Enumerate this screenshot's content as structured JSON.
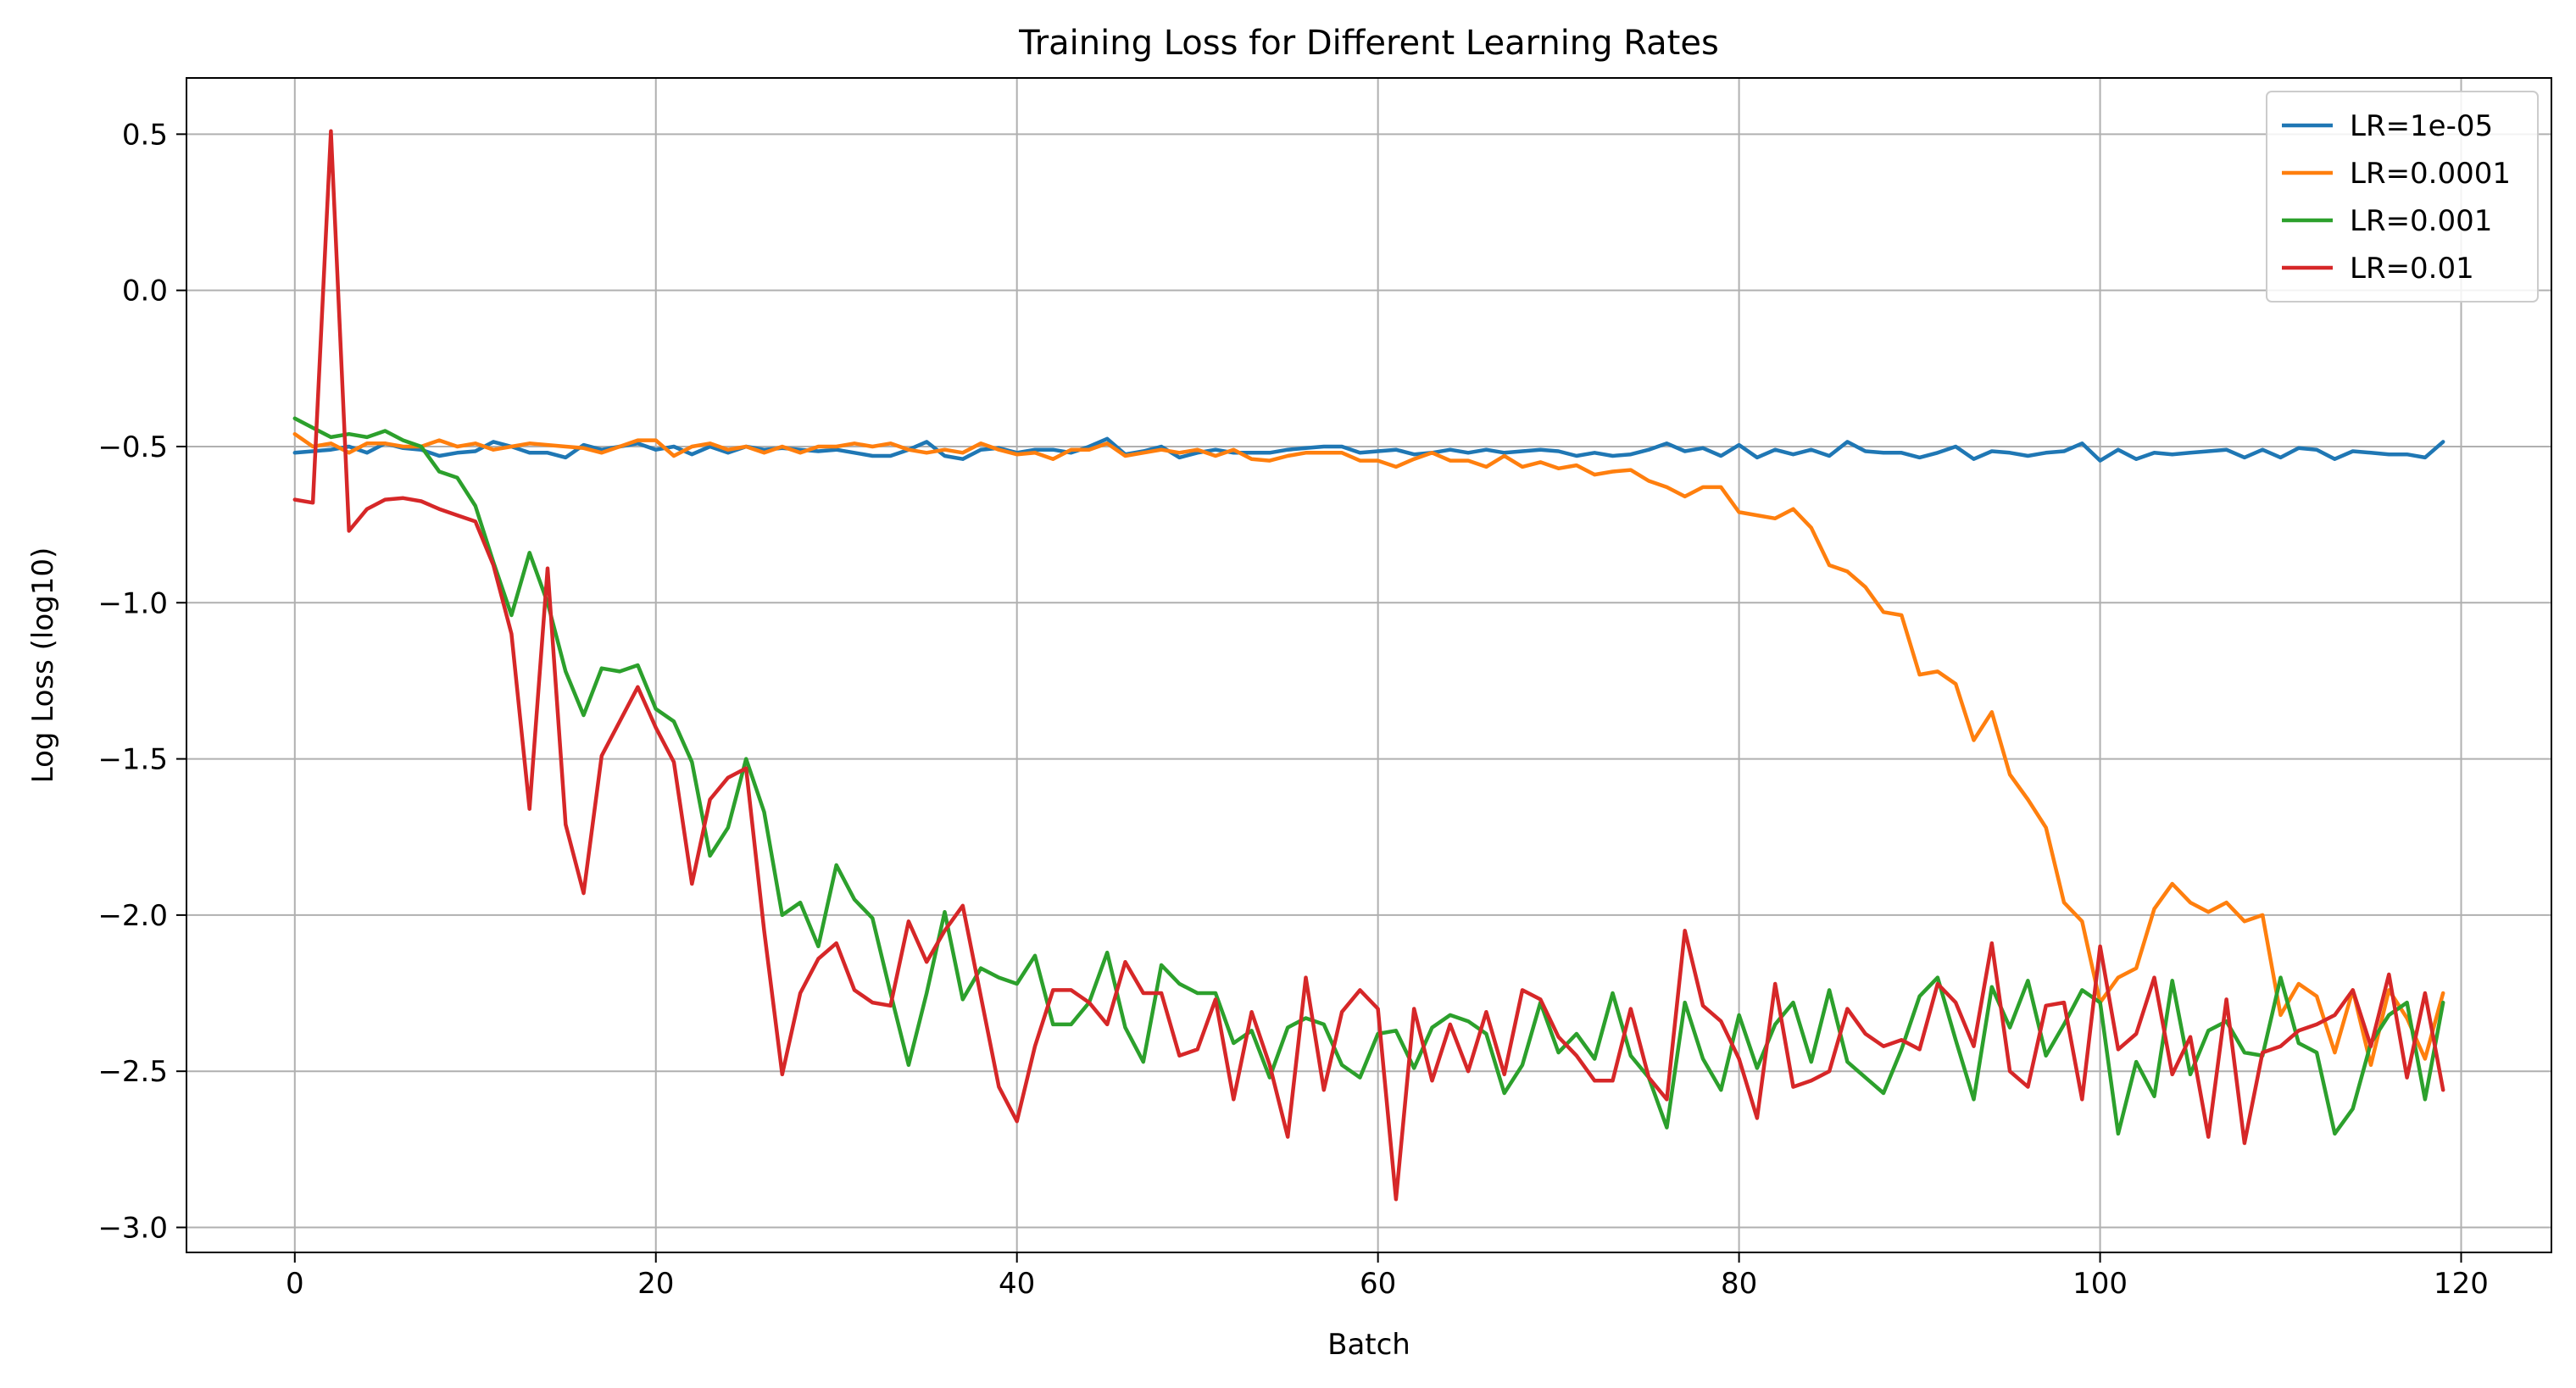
{
  "chart_data": {
    "type": "line",
    "title": "Training Loss for Different Learning Rates",
    "xlabel": "Batch",
    "ylabel": "Log Loss (log10)",
    "xlim": [
      -6,
      125
    ],
    "ylim": [
      -3.08,
      0.68
    ],
    "xticks": [
      0,
      20,
      40,
      60,
      80,
      100,
      120
    ],
    "yticks": [
      0.5,
      0.0,
      -0.5,
      -1.0,
      -1.5,
      -2.0,
      -2.5,
      -3.0
    ],
    "xtick_labels": [
      "0",
      "20",
      "40",
      "60",
      "80",
      "100",
      "120"
    ],
    "ytick_labels": [
      "0.5",
      "0.0",
      "−0.5",
      "−1.0",
      "−1.5",
      "−2.0",
      "−2.5",
      "−3.0"
    ],
    "grid": true,
    "legend_position": "top-right",
    "series": [
      {
        "name": "LR=1e-05",
        "color": "#1f77b4",
        "values": [
          -0.52,
          -0.515,
          -0.51,
          -0.5,
          -0.52,
          -0.49,
          -0.505,
          -0.51,
          -0.53,
          -0.52,
          -0.515,
          -0.485,
          -0.5,
          -0.52,
          -0.52,
          -0.535,
          -0.495,
          -0.51,
          -0.5,
          -0.49,
          -0.51,
          -0.5,
          -0.525,
          -0.5,
          -0.52,
          -0.5,
          -0.51,
          -0.505,
          -0.51,
          -0.515,
          -0.51,
          -0.52,
          -0.53,
          -0.53,
          -0.51,
          -0.485,
          -0.53,
          -0.54,
          -0.51,
          -0.505,
          -0.52,
          -0.51,
          -0.51,
          -0.52,
          -0.5,
          -0.475,
          -0.525,
          -0.515,
          -0.5,
          -0.535,
          -0.52,
          -0.51,
          -0.52,
          -0.52,
          -0.52,
          -0.51,
          -0.505,
          -0.5,
          -0.5,
          -0.52,
          -0.515,
          -0.51,
          -0.525,
          -0.52,
          -0.51,
          -0.52,
          -0.51,
          -0.52,
          -0.515,
          -0.51,
          -0.515,
          -0.53,
          -0.52,
          -0.53,
          -0.525,
          -0.51,
          -0.49,
          -0.515,
          -0.505,
          -0.53,
          -0.495,
          -0.535,
          -0.51,
          -0.525,
          -0.51,
          -0.53,
          -0.485,
          -0.515,
          -0.52,
          -0.52,
          -0.535,
          -0.52,
          -0.5,
          -0.54,
          -0.515,
          -0.52,
          -0.53,
          -0.52,
          -0.515,
          -0.49,
          -0.545,
          -0.51,
          -0.54,
          -0.52,
          -0.525,
          -0.52,
          -0.515,
          -0.51,
          -0.535,
          -0.51,
          -0.535,
          -0.505,
          -0.51,
          -0.54,
          -0.515,
          -0.52,
          -0.525,
          -0.525,
          -0.535,
          -0.485
        ]
      },
      {
        "name": "LR=0.0001",
        "color": "#ff7f0e",
        "values": [
          -0.46,
          -0.5,
          -0.49,
          -0.52,
          -0.49,
          -0.49,
          -0.5,
          -0.5,
          -0.48,
          -0.5,
          -0.49,
          -0.51,
          -0.5,
          -0.49,
          -0.495,
          -0.5,
          -0.505,
          -0.52,
          -0.5,
          -0.48,
          -0.48,
          -0.53,
          -0.5,
          -0.49,
          -0.51,
          -0.5,
          -0.52,
          -0.5,
          -0.52,
          -0.5,
          -0.5,
          -0.49,
          -0.5,
          -0.49,
          -0.51,
          -0.52,
          -0.51,
          -0.52,
          -0.49,
          -0.51,
          -0.525,
          -0.52,
          -0.54,
          -0.51,
          -0.51,
          -0.49,
          -0.53,
          -0.52,
          -0.51,
          -0.52,
          -0.51,
          -0.53,
          -0.51,
          -0.54,
          -0.545,
          -0.53,
          -0.52,
          -0.52,
          -0.52,
          -0.545,
          -0.545,
          -0.565,
          -0.54,
          -0.52,
          -0.545,
          -0.545,
          -0.565,
          -0.53,
          -0.565,
          -0.55,
          -0.57,
          -0.56,
          -0.59,
          -0.58,
          -0.575,
          -0.61,
          -0.63,
          -0.66,
          -0.63,
          -0.63,
          -0.71,
          -0.72,
          -0.73,
          -0.7,
          -0.76,
          -0.88,
          -0.9,
          -0.95,
          -1.03,
          -1.04,
          -1.23,
          -1.22,
          -1.26,
          -1.44,
          -1.35,
          -1.55,
          -1.63,
          -1.72,
          -1.96,
          -2.02,
          -2.28,
          -2.2,
          -2.17,
          -1.98,
          -1.9,
          -1.96,
          -1.99,
          -1.96,
          -2.02,
          -2.0,
          -2.32,
          -2.22,
          -2.26,
          -2.44,
          -2.24,
          -2.48,
          -2.24,
          -2.33,
          -2.46,
          -2.25
        ]
      },
      {
        "name": "LR=0.001",
        "color": "#2ca02c",
        "values": [
          -0.41,
          -0.44,
          -0.47,
          -0.46,
          -0.47,
          -0.45,
          -0.48,
          -0.5,
          -0.58,
          -0.6,
          -0.69,
          -0.87,
          -1.04,
          -0.84,
          -1.0,
          -1.22,
          -1.36,
          -1.21,
          -1.22,
          -1.2,
          -1.34,
          -1.38,
          -1.51,
          -1.81,
          -1.72,
          -1.5,
          -1.67,
          -2.0,
          -1.96,
          -2.1,
          -1.84,
          -1.95,
          -2.01,
          -2.25,
          -2.48,
          -2.25,
          -1.99,
          -2.27,
          -2.17,
          -2.2,
          -2.22,
          -2.13,
          -2.35,
          -2.35,
          -2.28,
          -2.12,
          -2.36,
          -2.47,
          -2.16,
          -2.22,
          -2.25,
          -2.25,
          -2.41,
          -2.37,
          -2.52,
          -2.36,
          -2.33,
          -2.35,
          -2.48,
          -2.52,
          -2.38,
          -2.37,
          -2.49,
          -2.36,
          -2.32,
          -2.34,
          -2.38,
          -2.57,
          -2.48,
          -2.28,
          -2.44,
          -2.38,
          -2.46,
          -2.25,
          -2.45,
          -2.52,
          -2.68,
          -2.28,
          -2.46,
          -2.56,
          -2.32,
          -2.49,
          -2.35,
          -2.28,
          -2.47,
          -2.24,
          -2.47,
          -2.52,
          -2.57,
          -2.43,
          -2.26,
          -2.2,
          -2.4,
          -2.59,
          -2.23,
          -2.36,
          -2.21,
          -2.45,
          -2.35,
          -2.24,
          -2.28,
          -2.7,
          -2.47,
          -2.58,
          -2.21,
          -2.51,
          -2.37,
          -2.34,
          -2.44,
          -2.45,
          -2.2,
          -2.41,
          -2.44,
          -2.7,
          -2.62,
          -2.41,
          -2.32,
          -2.28,
          -2.59,
          -2.28
        ]
      },
      {
        "name": "LR=0.01",
        "color": "#d62728",
        "values": [
          -0.67,
          -0.68,
          0.51,
          -0.77,
          -0.7,
          -0.67,
          -0.665,
          -0.675,
          -0.7,
          -0.72,
          -0.74,
          -0.88,
          -1.1,
          -1.66,
          -0.89,
          -1.71,
          -1.93,
          -1.49,
          -1.38,
          -1.27,
          -1.4,
          -1.51,
          -1.9,
          -1.63,
          -1.56,
          -1.53,
          -2.05,
          -2.51,
          -2.25,
          -2.14,
          -2.09,
          -2.24,
          -2.28,
          -2.29,
          -2.02,
          -2.15,
          -2.05,
          -1.97,
          -2.26,
          -2.55,
          -2.66,
          -2.42,
          -2.24,
          -2.24,
          -2.28,
          -2.35,
          -2.15,
          -2.25,
          -2.25,
          -2.45,
          -2.43,
          -2.27,
          -2.59,
          -2.31,
          -2.48,
          -2.71,
          -2.2,
          -2.56,
          -2.31,
          -2.24,
          -2.3,
          -2.91,
          -2.3,
          -2.53,
          -2.35,
          -2.5,
          -2.31,
          -2.51,
          -2.24,
          -2.27,
          -2.39,
          -2.45,
          -2.53,
          -2.53,
          -2.3,
          -2.52,
          -2.59,
          -2.05,
          -2.29,
          -2.34,
          -2.46,
          -2.65,
          -2.22,
          -2.55,
          -2.53,
          -2.5,
          -2.3,
          -2.38,
          -2.42,
          -2.4,
          -2.43,
          -2.22,
          -2.28,
          -2.42,
          -2.09,
          -2.5,
          -2.55,
          -2.29,
          -2.28,
          -2.59,
          -2.1,
          -2.43,
          -2.38,
          -2.2,
          -2.51,
          -2.39,
          -2.71,
          -2.27,
          -2.73,
          -2.44,
          -2.42,
          -2.37,
          -2.35,
          -2.32,
          -2.24,
          -2.42,
          -2.19,
          -2.52,
          -2.25,
          -2.56
        ]
      }
    ]
  }
}
